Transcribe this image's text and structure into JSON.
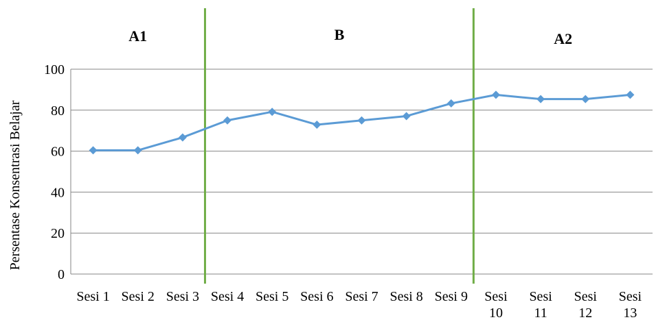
{
  "chart_data": {
    "type": "line",
    "categories": [
      [
        "Sesi 1"
      ],
      [
        "Sesi 2"
      ],
      [
        "Sesi 3"
      ],
      [
        "Sesi 4"
      ],
      [
        "Sesi 5"
      ],
      [
        "Sesi 6"
      ],
      [
        "Sesi 7"
      ],
      [
        "Sesi 8"
      ],
      [
        "Sesi 9"
      ],
      [
        "Sesi",
        "10"
      ],
      [
        "Sesi",
        "11"
      ],
      [
        "Sesi",
        "12"
      ],
      [
        "Sesi",
        "13"
      ]
    ],
    "series": [
      {
        "values": [
          60.4,
          60.4,
          66.7,
          75.0,
          79.2,
          72.9,
          75.0,
          77.1,
          83.3,
          87.5,
          85.4,
          85.4,
          87.5
        ],
        "color": "#5B9BD5",
        "marker": "diamond"
      }
    ],
    "ylabel": "Persentase Konsentrasi Belajar",
    "xlabel": "",
    "ylim": [
      0,
      100
    ],
    "yticks": [
      0,
      20,
      40,
      60,
      80,
      100
    ],
    "grid": true,
    "phases": [
      {
        "label": "A1"
      },
      {
        "label": "B"
      },
      {
        "label": "A2"
      }
    ],
    "phase_boundaries_after_category": [
      3,
      9
    ],
    "phase_line_color": "#70AD47",
    "gridline_color": "#868686"
  }
}
